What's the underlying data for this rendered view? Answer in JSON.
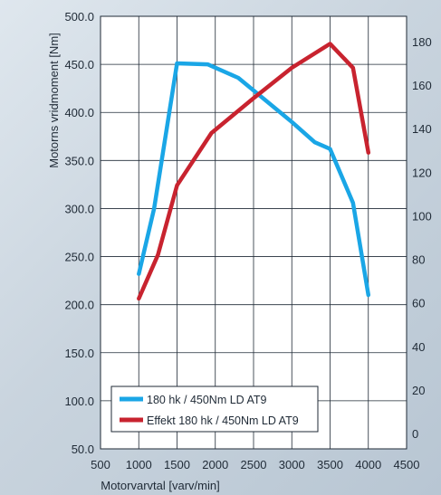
{
  "chart_data": {
    "type": "line",
    "xlabel": "Motorvarvtal [varv/min]",
    "ylabel": "Motorns vridmoment [Nm]",
    "y2label": "",
    "xlim": [
      500,
      4500
    ],
    "ylim": [
      50,
      500
    ],
    "y2lim": [
      0,
      180
    ],
    "x_ticks": [
      500,
      1000,
      1500,
      2000,
      2500,
      3000,
      3500,
      4000,
      4500
    ],
    "x_tick_labels": [
      "500",
      "1000",
      "1500",
      "2000",
      "2500",
      "3000",
      "3500",
      "4000",
      "4500"
    ],
    "y_ticks": [
      50,
      100,
      150,
      200,
      250,
      300,
      350,
      400,
      450,
      500
    ],
    "y_tick_labels": [
      "50.0",
      "100.0",
      "150.0",
      "200.0",
      "250.0",
      "300.0",
      "350.0",
      "400.0",
      "450.0",
      "500.0"
    ],
    "y2_ticks": [
      0,
      20,
      40,
      60,
      80,
      100,
      120,
      140,
      160,
      180
    ],
    "y2_tick_labels": [
      "0",
      "20",
      "40",
      "60",
      "80",
      "100",
      "120",
      "140",
      "160",
      "180"
    ],
    "grid": true,
    "legend_position": "bottom-left",
    "series": [
      {
        "name": "180 hk / 450Nm LD AT9",
        "axis": "left",
        "color": "#1aa6e6",
        "x": [
          1000,
          1200,
          1500,
          1900,
          2300,
          3000,
          3300,
          3500,
          3800,
          4000
        ],
        "y": [
          232,
          300,
          451,
          450,
          436,
          390,
          369,
          362,
          306,
          210
        ]
      },
      {
        "name": "Effekt 180 hk / 450Nm LD AT9",
        "axis": "right",
        "color": "#c8232f",
        "x": [
          1000,
          1250,
          1500,
          1950,
          2500,
          3000,
          3500,
          3800,
          4000
        ],
        "y": [
          62,
          82,
          114,
          138,
          154,
          168,
          179,
          168,
          129
        ]
      }
    ]
  }
}
